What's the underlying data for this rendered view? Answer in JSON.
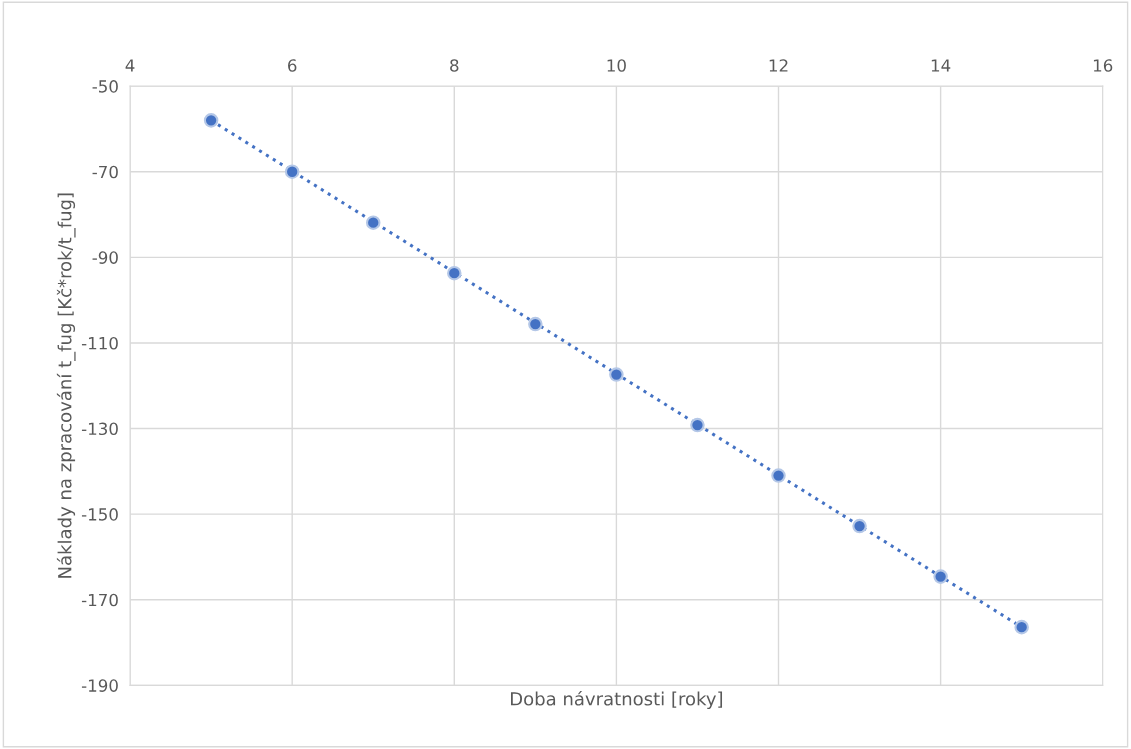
{
  "chart_data": {
    "type": "scatter",
    "xlabel": "Doba návratnosti [roky]",
    "ylabel": "Náklady na zpracování t_fug [Kč*rok/t_fug]",
    "x": [
      5,
      6,
      7,
      8,
      9,
      10,
      11,
      12,
      13,
      14,
      15
    ],
    "series": [
      {
        "color": "#4472c4",
        "marker": "circle",
        "values": [
          -58,
          -70,
          -81.9,
          -93.7,
          -105.6,
          -117.4,
          -129.2,
          -141,
          -152.8,
          -164.6,
          -176.4
        ]
      },
      {
        "type": "line",
        "color": "#4472c4",
        "line_style": "dotted",
        "x": [
          5,
          15
        ],
        "values": [
          -58,
          -176.4
        ]
      }
    ],
    "xlim": [
      4,
      16
    ],
    "xticks": [
      4,
      6,
      8,
      10,
      12,
      14,
      16
    ],
    "ylim": [
      -190,
      -50
    ],
    "yticks": [
      -190,
      -170,
      -150,
      -130,
      -110,
      -90,
      -70,
      -50
    ],
    "grid": true,
    "legend": false
  }
}
